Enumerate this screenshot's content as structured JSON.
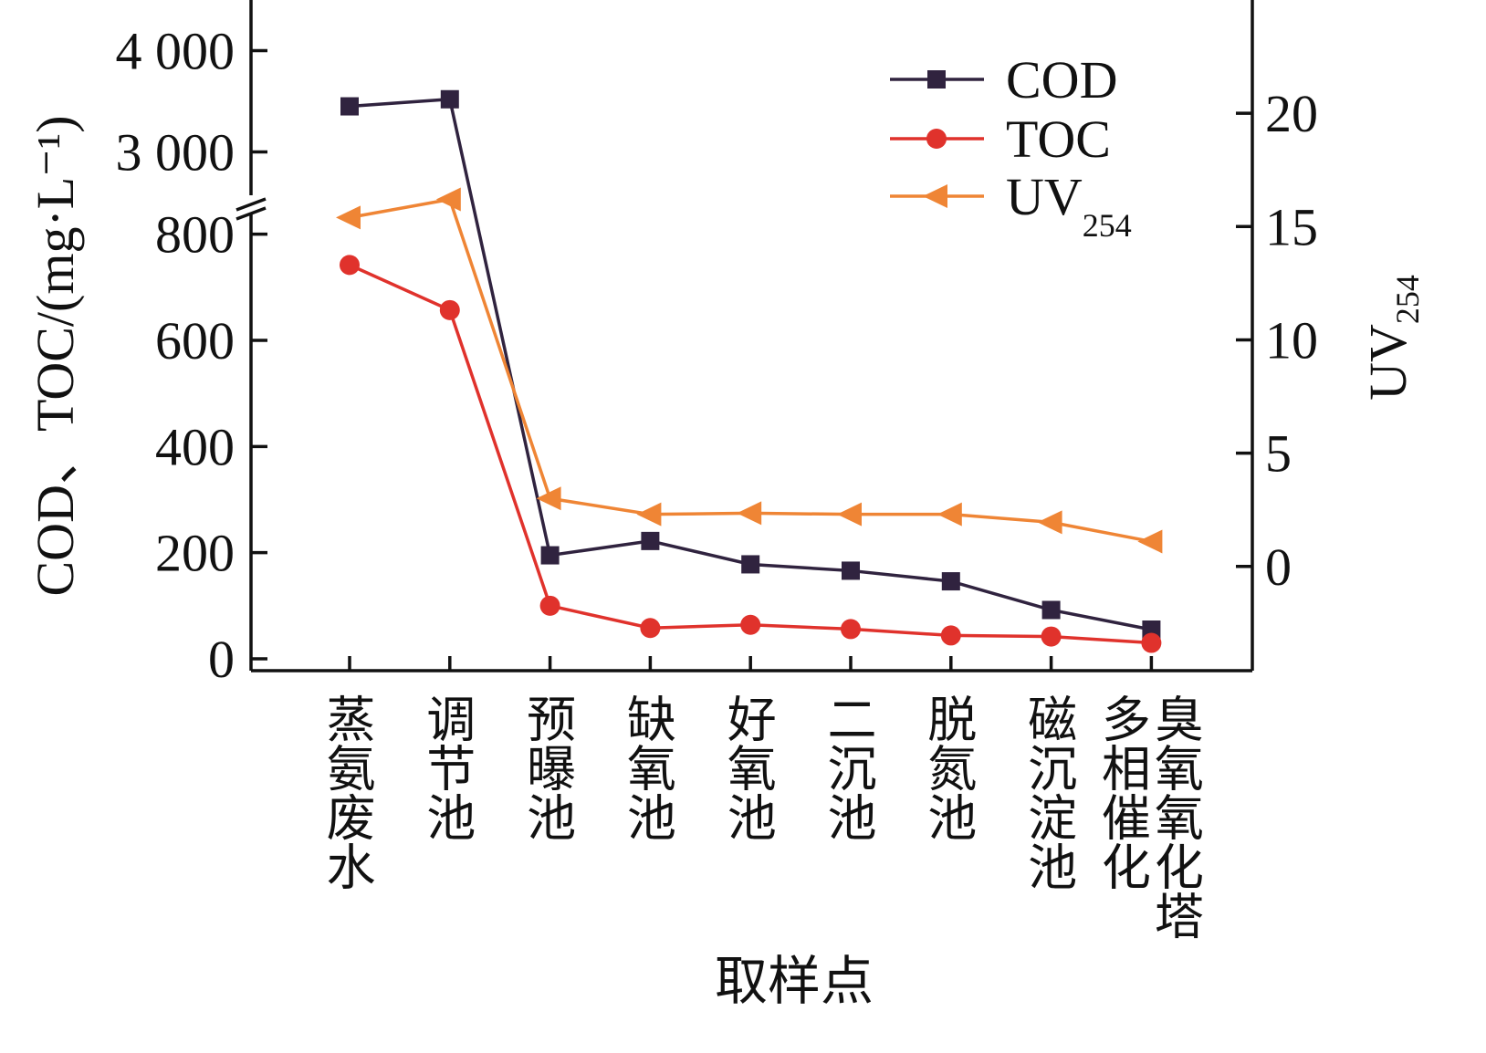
{
  "chart_data": {
    "type": "line",
    "xlabel": "取样点",
    "ylabel_left": "COD、TOC/(mg·L⁻¹)",
    "ylabel_right": {
      "main": "UV",
      "sub": "254"
    },
    "categories": [
      [
        "蒸氨废水"
      ],
      [
        "调节池"
      ],
      [
        "预曝池"
      ],
      [
        "缺氧池"
      ],
      [
        "好氧池"
      ],
      [
        "二沉池"
      ],
      [
        "脱氮池"
      ],
      [
        "磁沉淀池"
      ],
      [
        "多相催化",
        "臭氧氧化塔"
      ]
    ],
    "left_axis": {
      "ticks_lower": [
        "0",
        "200",
        "400",
        "600",
        "800"
      ],
      "tick_values_lower": [
        0,
        200,
        400,
        600,
        800
      ],
      "ticks_upper": [
        "3 000",
        "4 000"
      ],
      "tick_values_upper": [
        3000,
        4000
      ],
      "broken": true,
      "lower_range": [
        0,
        820
      ],
      "upper_range": [
        2500,
        4500
      ]
    },
    "right_axis": {
      "ticks": [
        "0",
        "5",
        "10",
        "15",
        "20"
      ],
      "tick_values": [
        0,
        5,
        10,
        15,
        20
      ],
      "ylim": [
        -4.6,
        25
      ]
    },
    "series": [
      {
        "name": "COD",
        "axis": "left",
        "color": "#30233f",
        "marker": "square",
        "values": [
          3450,
          3520,
          195,
          222,
          178,
          166,
          146,
          92,
          55
        ]
      },
      {
        "name": "TOC",
        "axis": "left",
        "color": "#e0322c",
        "marker": "circle",
        "values": [
          742,
          657,
          100,
          58,
          64,
          56,
          44,
          42,
          30
        ]
      },
      {
        "name": "UV",
        "name_sub": "254",
        "axis": "right",
        "color": "#ef8535",
        "marker": "triangle-left",
        "values": [
          15.4,
          16.2,
          3.0,
          2.3,
          2.35,
          2.3,
          2.3,
          1.95,
          1.1
        ]
      }
    ],
    "legend_position": "top-right"
  }
}
